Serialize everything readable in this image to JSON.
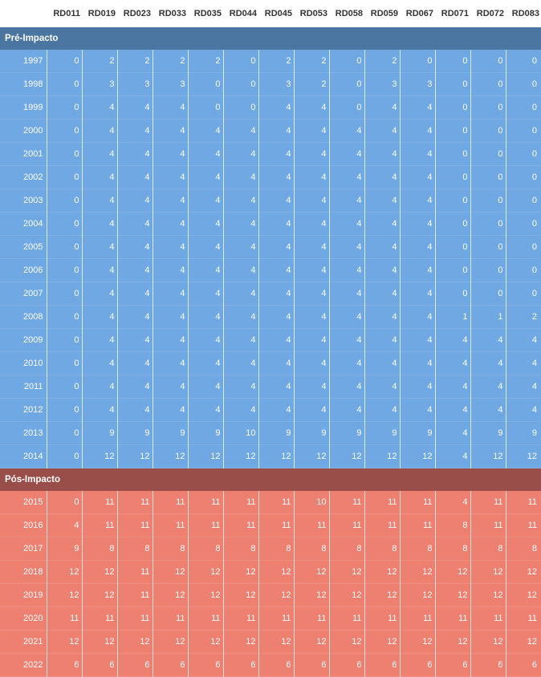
{
  "chart_data": {
    "type": "table",
    "columns": [
      "RD011",
      "RD019",
      "RD023",
      "RD033",
      "RD035",
      "RD044",
      "RD045",
      "RD053",
      "RD058",
      "RD059",
      "RD067",
      "RD071",
      "RD072",
      "RD083"
    ],
    "groups": [
      {
        "name": "Pré-Impacto",
        "color": "#6fa8e2",
        "header_color": "#4a76a1",
        "rows": [
          {
            "year": "1997",
            "values": [
              0,
              2,
              2,
              2,
              2,
              0,
              2,
              2,
              0,
              2,
              0,
              0,
              0,
              0
            ]
          },
          {
            "year": "1998",
            "values": [
              0,
              3,
              3,
              3,
              0,
              0,
              3,
              2,
              0,
              3,
              3,
              0,
              0,
              0
            ]
          },
          {
            "year": "1999",
            "values": [
              0,
              4,
              4,
              4,
              0,
              0,
              4,
              4,
              0,
              4,
              4,
              0,
              0,
              0
            ]
          },
          {
            "year": "2000",
            "values": [
              0,
              4,
              4,
              4,
              4,
              4,
              4,
              4,
              4,
              4,
              4,
              0,
              0,
              0
            ]
          },
          {
            "year": "2001",
            "values": [
              0,
              4,
              4,
              4,
              4,
              4,
              4,
              4,
              4,
              4,
              4,
              0,
              0,
              0
            ]
          },
          {
            "year": "2002",
            "values": [
              0,
              4,
              4,
              4,
              4,
              4,
              4,
              4,
              4,
              4,
              4,
              0,
              0,
              0
            ]
          },
          {
            "year": "2003",
            "values": [
              0,
              4,
              4,
              4,
              4,
              4,
              4,
              4,
              4,
              4,
              4,
              0,
              0,
              0
            ]
          },
          {
            "year": "2004",
            "values": [
              0,
              4,
              4,
              4,
              4,
              4,
              4,
              4,
              4,
              4,
              4,
              0,
              0,
              0
            ]
          },
          {
            "year": "2005",
            "values": [
              0,
              4,
              4,
              4,
              4,
              4,
              4,
              4,
              4,
              4,
              4,
              0,
              0,
              0
            ]
          },
          {
            "year": "2006",
            "values": [
              0,
              4,
              4,
              4,
              4,
              4,
              4,
              4,
              4,
              4,
              4,
              0,
              0,
              0
            ]
          },
          {
            "year": "2007",
            "values": [
              0,
              4,
              4,
              4,
              4,
              4,
              4,
              4,
              4,
              4,
              4,
              0,
              0,
              0
            ]
          },
          {
            "year": "2008",
            "values": [
              0,
              4,
              4,
              4,
              4,
              4,
              4,
              4,
              4,
              4,
              4,
              1,
              1,
              2
            ]
          },
          {
            "year": "2009",
            "values": [
              0,
              4,
              4,
              4,
              4,
              4,
              4,
              4,
              4,
              4,
              4,
              4,
              4,
              4
            ]
          },
          {
            "year": "2010",
            "values": [
              0,
              4,
              4,
              4,
              4,
              4,
              4,
              4,
              4,
              4,
              4,
              4,
              4,
              4
            ]
          },
          {
            "year": "2011",
            "values": [
              0,
              4,
              4,
              4,
              4,
              4,
              4,
              4,
              4,
              4,
              4,
              4,
              4,
              4
            ]
          },
          {
            "year": "2012",
            "values": [
              0,
              4,
              4,
              4,
              4,
              4,
              4,
              4,
              4,
              4,
              4,
              4,
              4,
              4
            ]
          },
          {
            "year": "2013",
            "values": [
              0,
              9,
              9,
              9,
              9,
              10,
              9,
              9,
              9,
              9,
              9,
              4,
              9,
              9
            ]
          },
          {
            "year": "2014",
            "values": [
              0,
              12,
              12,
              12,
              12,
              12,
              12,
              12,
              12,
              12,
              12,
              4,
              12,
              12
            ]
          }
        ]
      },
      {
        "name": "Pós-Impacto",
        "color": "#ee8072",
        "header_color": "#9a4e49",
        "rows": [
          {
            "year": "2015",
            "values": [
              0,
              11,
              11,
              11,
              11,
              11,
              11,
              10,
              11,
              11,
              11,
              4,
              11,
              11
            ]
          },
          {
            "year": "2016",
            "values": [
              4,
              11,
              11,
              11,
              11,
              11,
              11,
              11,
              11,
              11,
              11,
              8,
              11,
              11
            ]
          },
          {
            "year": "2017",
            "values": [
              9,
              8,
              8,
              8,
              8,
              8,
              8,
              8,
              8,
              8,
              8,
              8,
              8,
              8
            ]
          },
          {
            "year": "2018",
            "values": [
              12,
              12,
              11,
              12,
              12,
              12,
              12,
              12,
              12,
              12,
              12,
              12,
              12,
              12
            ]
          },
          {
            "year": "2019",
            "values": [
              12,
              12,
              11,
              12,
              12,
              12,
              12,
              12,
              12,
              12,
              12,
              12,
              12,
              12
            ]
          },
          {
            "year": "2020",
            "values": [
              11,
              11,
              11,
              11,
              11,
              11,
              11,
              11,
              11,
              11,
              11,
              11,
              11,
              11
            ]
          },
          {
            "year": "2021",
            "values": [
              12,
              12,
              12,
              12,
              12,
              12,
              12,
              12,
              12,
              12,
              12,
              12,
              12,
              12
            ]
          },
          {
            "year": "2022",
            "values": [
              6,
              6,
              6,
              6,
              6,
              6,
              6,
              6,
              6,
              6,
              6,
              6,
              6,
              6
            ]
          }
        ]
      }
    ]
  }
}
